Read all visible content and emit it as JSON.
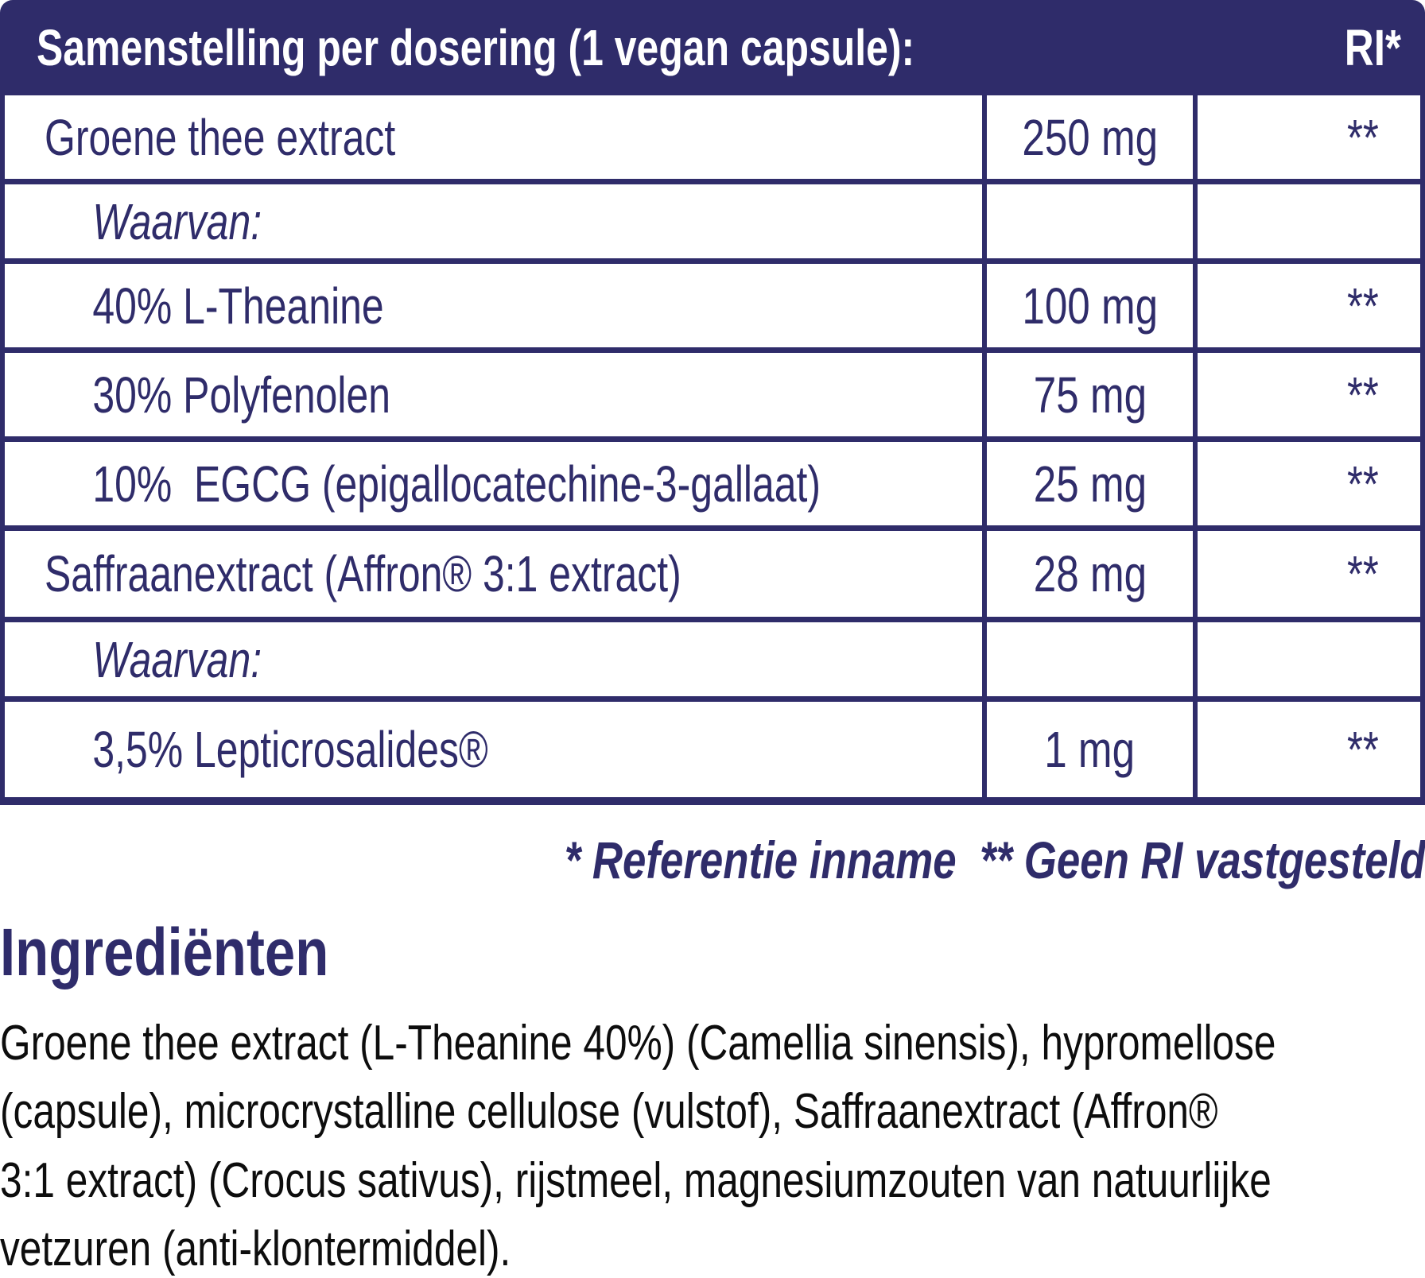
{
  "colors": {
    "navy": "#2f2c6a",
    "body_text": "#0d0d0d",
    "header_text": "#ffffff",
    "background": "#ffffff"
  },
  "table": {
    "header": {
      "title": "Samenstelling per dosering (1 vegan capsule):",
      "ri_label": "RI*"
    },
    "rows": [
      {
        "name": "Groene thee extract",
        "amount": "250 mg",
        "ri": "**"
      },
      {
        "name": "Waarvan:",
        "amount": "",
        "ri": ""
      },
      {
        "name": "40% L-Theanine",
        "amount": "100 mg",
        "ri": "**"
      },
      {
        "name": "30% Polyfenolen",
        "amount": "75 mg",
        "ri": "**"
      },
      {
        "name": "10%  EGCG (epigallocatechine-3-gallaat)",
        "amount": "25 mg",
        "ri": "**"
      },
      {
        "name": "Saffraanextract (Affron® 3:1 extract)",
        "amount": "28 mg",
        "ri": "**"
      },
      {
        "name": "Waarvan:",
        "amount": "",
        "ri": ""
      },
      {
        "name": "3,5% Lepticrosalides®",
        "amount": "1 mg",
        "ri": "**"
      }
    ],
    "footnote": "* Referentie inname  ** Geen RI vastgesteld"
  },
  "ingredients": {
    "heading": "Ingrediënten",
    "body": "Groene thee extract (L-Theanine 40%) (Camellia sinensis), hypromellose\n(capsule), microcrystalline cellulose (vulstof), Saffraanextract (Affron®\n3:1 extract) (Crocus sativus), rijstmeel, magnesiumzouten van natuurlijke\nvetzuren (anti-klontermiddel)."
  }
}
